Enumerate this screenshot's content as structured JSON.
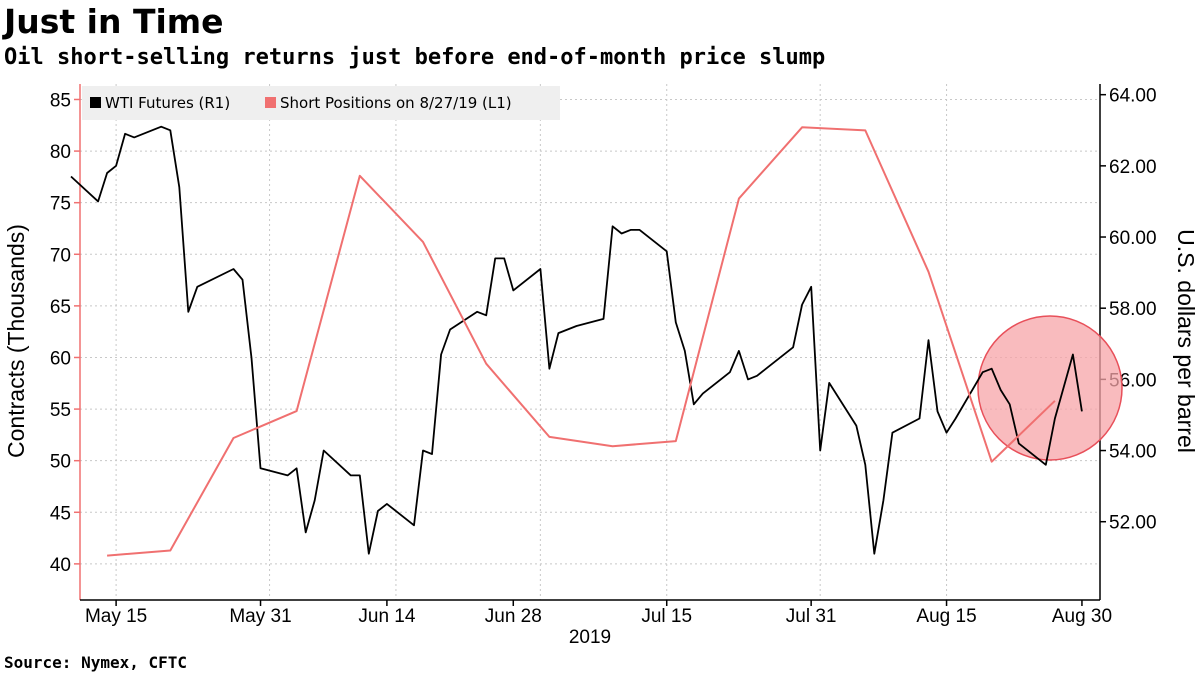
{
  "title": "Just in Time",
  "subtitle": "Oil short-selling returns just before end-of-month price slump",
  "source": "Source: Nymex, CFTC",
  "chart_data": {
    "type": "line",
    "xlabel": "2019",
    "ylabel_left": "Contracts (Thousands)",
    "ylabel_right": "U.S. dollars per barrel",
    "x_tick_labels": [
      "May 15",
      "May 31",
      "Jun 14",
      "Jun 28",
      "Jul 15",
      "Jul 31",
      "Aug 15",
      "Aug 30"
    ],
    "y_left_ticks": [
      "40",
      "45",
      "50",
      "55",
      "60",
      "65",
      "70",
      "75",
      "80",
      "85"
    ],
    "y_right_ticks": [
      "52.00",
      "54.00",
      "56.00",
      "58.00",
      "60.00",
      "62.00",
      "64.00"
    ],
    "ylim_left": [
      36.5,
      86.5
    ],
    "ylim_right": [
      49.8,
      64.3
    ],
    "xlim": [
      "2019-05-11",
      "2019-09-01"
    ],
    "grid": true,
    "legend_position": "top-left",
    "series": [
      {
        "name": "WTI Futures (R1)",
        "axis": "right",
        "color": "#000000",
        "x": [
          "2019-05-10",
          "2019-05-13",
          "2019-05-14",
          "2019-05-15",
          "2019-05-16",
          "2019-05-17",
          "2019-05-20",
          "2019-05-21",
          "2019-05-22",
          "2019-05-23",
          "2019-05-24",
          "2019-05-28",
          "2019-05-29",
          "2019-05-30",
          "2019-05-31",
          "2019-06-03",
          "2019-06-04",
          "2019-06-05",
          "2019-06-06",
          "2019-06-07",
          "2019-06-10",
          "2019-06-11",
          "2019-06-12",
          "2019-06-13",
          "2019-06-14",
          "2019-06-17",
          "2019-06-18",
          "2019-06-19",
          "2019-06-20",
          "2019-06-21",
          "2019-06-24",
          "2019-06-25",
          "2019-06-26",
          "2019-06-27",
          "2019-06-28",
          "2019-07-01",
          "2019-07-02",
          "2019-07-03",
          "2019-07-05",
          "2019-07-08",
          "2019-07-09",
          "2019-07-10",
          "2019-07-11",
          "2019-07-12",
          "2019-07-15",
          "2019-07-16",
          "2019-07-17",
          "2019-07-18",
          "2019-07-19",
          "2019-07-22",
          "2019-07-23",
          "2019-07-24",
          "2019-07-25",
          "2019-07-26",
          "2019-07-29",
          "2019-07-30",
          "2019-07-31",
          "2019-08-01",
          "2019-08-02",
          "2019-08-05",
          "2019-08-06",
          "2019-08-07",
          "2019-08-08",
          "2019-08-09",
          "2019-08-12",
          "2019-08-13",
          "2019-08-14",
          "2019-08-15",
          "2019-08-16",
          "2019-08-19",
          "2019-08-20",
          "2019-08-21",
          "2019-08-22",
          "2019-08-23",
          "2019-08-26",
          "2019-08-27",
          "2019-08-28",
          "2019-08-29",
          "2019-08-30"
        ],
        "values": [
          61.7,
          61.0,
          61.8,
          62.0,
          62.9,
          62.8,
          63.1,
          63.0,
          61.4,
          57.9,
          58.6,
          59.1,
          58.8,
          56.6,
          53.5,
          53.3,
          53.5,
          51.7,
          52.6,
          54.0,
          53.3,
          53.3,
          51.1,
          52.3,
          52.5,
          51.9,
          54.0,
          53.9,
          56.7,
          57.4,
          57.9,
          57.8,
          59.4,
          59.4,
          58.5,
          59.1,
          56.3,
          57.3,
          57.5,
          57.7,
          60.3,
          60.1,
          60.2,
          60.2,
          59.6,
          57.6,
          56.8,
          55.3,
          55.6,
          56.2,
          56.8,
          56.0,
          56.1,
          56.3,
          56.9,
          58.1,
          58.6,
          54.0,
          55.9,
          54.7,
          53.6,
          51.1,
          52.6,
          54.5,
          54.9,
          57.1,
          55.1,
          54.5,
          54.9,
          56.2,
          56.3,
          55.7,
          55.3,
          54.2,
          53.6,
          54.9,
          55.8,
          56.7,
          55.1
        ]
      },
      {
        "name": "Short Positions on 8/27/19 (L1)",
        "axis": "left",
        "color": "#f07070",
        "x": [
          "2019-05-14",
          "2019-05-21",
          "2019-05-28",
          "2019-06-04",
          "2019-06-11",
          "2019-06-18",
          "2019-06-25",
          "2019-07-02",
          "2019-07-09",
          "2019-07-16",
          "2019-07-23",
          "2019-07-30",
          "2019-08-06",
          "2019-08-13",
          "2019-08-20",
          "2019-08-27"
        ],
        "values": [
          40.8,
          41.3,
          52.2,
          54.8,
          77.6,
          71.2,
          59.4,
          52.3,
          51.4,
          51.9,
          75.4,
          82.3,
          82.0,
          68.3,
          49.9,
          55.8
        ]
      }
    ],
    "annotation": {
      "type": "circle-highlight",
      "color": "#f7a4a8"
    }
  }
}
